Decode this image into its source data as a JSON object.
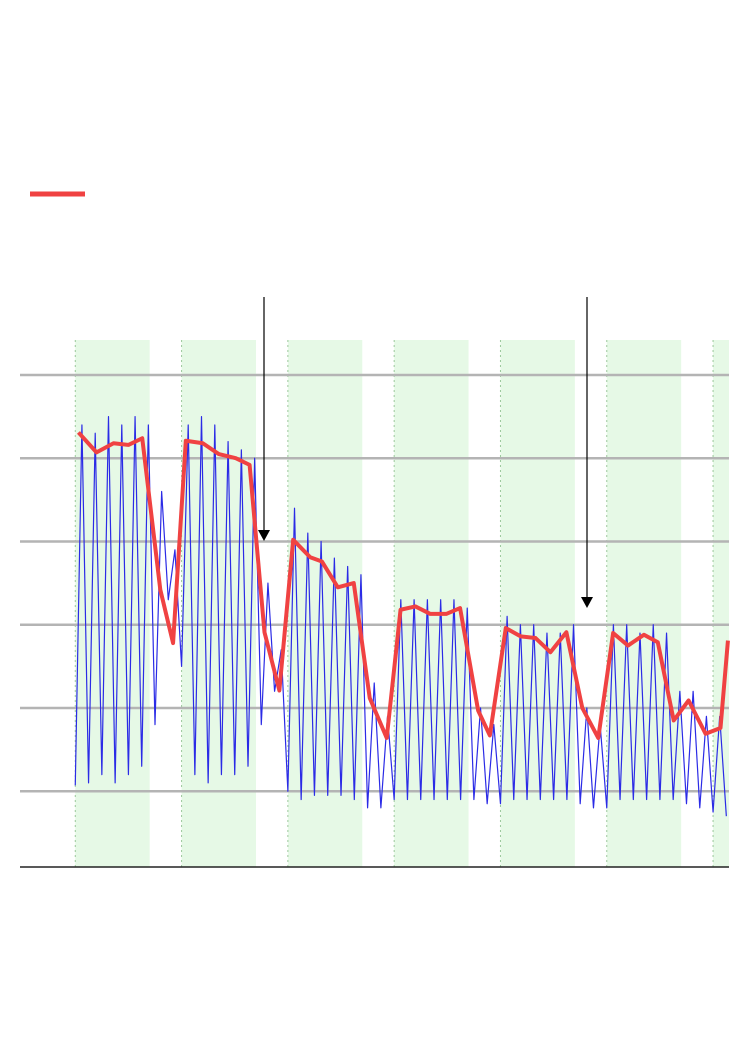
{
  "chart_data": {
    "type": "line",
    "xlim": [
      -0.52,
      6.15
    ],
    "ylim": [
      0.09,
      6.42
    ],
    "yticks": [
      1,
      2,
      3,
      4,
      5,
      6
    ],
    "grid": true,
    "grid_color": "#b4b4b4",
    "shaded_ranges": [
      [
        0,
        0.7
      ],
      [
        1,
        1.7
      ],
      [
        2,
        2.7
      ],
      [
        3,
        3.7
      ],
      [
        4,
        4.7
      ],
      [
        5,
        5.7
      ],
      [
        6,
        6.15
      ]
    ],
    "shade_color": "#e6f9e6",
    "series": [
      {
        "color": "#2b2be6",
        "width": 1.2,
        "x": [
          0,
          0.0625,
          0.125,
          0.1875,
          0.25,
          0.3125,
          0.375,
          0.4375,
          0.5,
          0.5625,
          0.625,
          0.6875,
          0.75,
          0.8125,
          0.875,
          0.9375,
          1,
          1.0625,
          1.125,
          1.1875,
          1.25,
          1.3125,
          1.375,
          1.4375,
          1.5,
          1.5625,
          1.625,
          1.6875,
          1.75,
          1.8125,
          1.875,
          1.9375,
          2,
          2.0625,
          2.125,
          2.1875,
          2.25,
          2.3125,
          2.375,
          2.4375,
          2.5,
          2.5625,
          2.625,
          2.6875,
          2.75,
          2.8125,
          2.875,
          2.9375,
          3,
          3.0625,
          3.125,
          3.1875,
          3.25,
          3.3125,
          3.375,
          3.4375,
          3.5,
          3.5625,
          3.625,
          3.6875,
          3.75,
          3.8125,
          3.875,
          3.9375,
          4,
          4.0625,
          4.125,
          4.1875,
          4.25,
          4.3125,
          4.375,
          4.4375,
          4.5,
          4.5625,
          4.625,
          4.6875,
          4.75,
          4.8125,
          4.875,
          4.9375,
          5,
          5.0625,
          5.125,
          5.1875,
          5.25,
          5.3125,
          5.375,
          5.4375,
          5.5,
          5.5625,
          5.625,
          5.6875,
          5.75,
          5.8125,
          5.875,
          5.9375,
          6,
          6.0625,
          6.125
        ],
        "values": [
          1.07,
          5.4,
          1.1,
          5.3,
          1.2,
          5.5,
          1.1,
          5.4,
          1.2,
          5.5,
          1.3,
          5.4,
          1.8,
          4.6,
          3.3,
          3.9,
          2.5,
          5.4,
          1.2,
          5.5,
          1.1,
          5.4,
          1.2,
          5.2,
          1.2,
          5.1,
          1.3,
          5.0,
          1.8,
          3.5,
          2.2,
          2.7,
          1.0,
          4.4,
          0.9,
          4.1,
          0.95,
          4.0,
          0.95,
          3.8,
          0.95,
          3.7,
          0.9,
          3.6,
          0.8,
          2.3,
          0.8,
          1.9,
          0.9,
          3.3,
          0.9,
          3.3,
          0.9,
          3.3,
          0.9,
          3.3,
          0.9,
          3.3,
          0.9,
          3.2,
          0.9,
          2.0,
          0.85,
          1.8,
          0.85,
          3.1,
          0.9,
          3.0,
          0.9,
          3.0,
          0.9,
          2.9,
          0.9,
          2.9,
          0.9,
          3.0,
          0.85,
          2.0,
          0.8,
          1.8,
          0.8,
          3.0,
          0.9,
          3.0,
          0.9,
          2.9,
          0.9,
          3.0,
          0.9,
          2.9,
          0.9,
          2.2,
          0.85,
          2.2,
          0.8,
          1.9,
          0.75,
          1.9,
          0.7
        ]
      },
      {
        "color": "#f04242",
        "width": 4,
        "x": [
          0.03,
          0.2,
          0.36,
          0.5,
          0.63,
          0.8,
          0.92,
          1.04,
          1.2,
          1.35,
          1.51,
          1.64,
          1.78,
          1.92,
          2.05,
          2.21,
          2.32,
          2.47,
          2.62,
          2.77,
          2.93,
          3.06,
          3.2,
          3.34,
          3.49,
          3.62,
          3.79,
          3.9,
          4.05,
          4.19,
          4.33,
          4.47,
          4.62,
          4.77,
          4.92,
          5.06,
          5.2,
          5.35,
          5.48,
          5.63,
          5.77,
          5.93,
          6.07,
          6.14
        ],
        "values": [
          5.31,
          5.07,
          5.18,
          5.16,
          5.24,
          3.42,
          2.78,
          5.21,
          5.18,
          5.05,
          5.0,
          4.92,
          2.91,
          2.21,
          4.02,
          3.81,
          3.76,
          3.45,
          3.5,
          2.12,
          1.64,
          3.18,
          3.22,
          3.13,
          3.13,
          3.2,
          1.97,
          1.67,
          2.96,
          2.86,
          2.84,
          2.67,
          2.91,
          2.0,
          1.64,
          2.9,
          2.75,
          2.88,
          2.79,
          1.85,
          2.09,
          1.69,
          1.76,
          2.81
        ]
      }
    ]
  }
}
